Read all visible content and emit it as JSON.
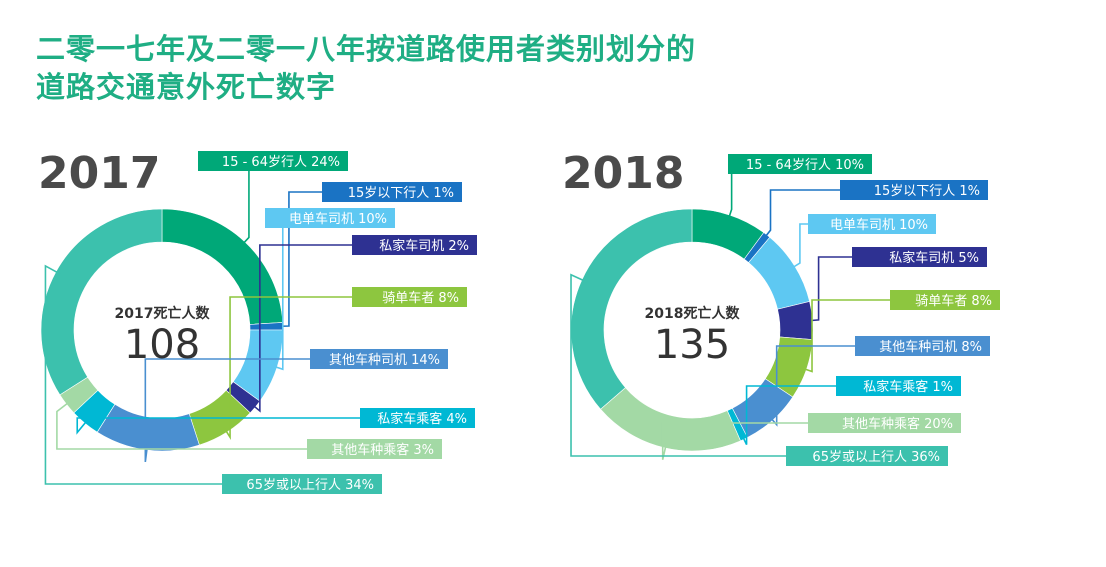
{
  "title": {
    "line1": "二零一七年及二零一八年按道路使用者类别划分的",
    "line2": "道路交通意外死亡数字"
  },
  "chart_data": [
    {
      "type": "pie",
      "year": "2017",
      "center_label": "2017死亡人数",
      "center_value": "108",
      "slices": [
        {
          "label": "15 - 64岁行人 24%",
          "value": 24,
          "color": "#00a878",
          "text_color": "#ffffff"
        },
        {
          "label": "15岁以下行人 1%",
          "value": 1,
          "color": "#1a73c4",
          "text_color": "#ffffff"
        },
        {
          "label": "电单车司机 10%",
          "value": 10,
          "color": "#5ec8f2",
          "text_color": "#ffffff"
        },
        {
          "label": "私家车司机 2%",
          "value": 2,
          "color": "#2e3192",
          "text_color": "#ffffff"
        },
        {
          "label": "骑单车者 8%",
          "value": 8,
          "color": "#8dc63f",
          "text_color": "#ffffff"
        },
        {
          "label": "其他车种司机 14%",
          "value": 14,
          "color": "#4a8fd0",
          "text_color": "#ffffff"
        },
        {
          "label": "私家车乘客 4%",
          "value": 4,
          "color": "#00b8d4",
          "text_color": "#ffffff"
        },
        {
          "label": "其他车种乘客 3%",
          "value": 3,
          "color": "#a3d9a5",
          "text_color": "#ffffff"
        },
        {
          "label": "65岁或以上行人 34%",
          "value": 34,
          "color": "#3cc1ad",
          "text_color": "#ffffff"
        }
      ]
    },
    {
      "type": "pie",
      "year": "2018",
      "center_label": "2018死亡人数",
      "center_value": "135",
      "slices": [
        {
          "label": "15 - 64岁行人 10%",
          "value": 10,
          "color": "#00a878",
          "text_color": "#ffffff"
        },
        {
          "label": "15岁以下行人 1%",
          "value": 1,
          "color": "#1a73c4",
          "text_color": "#ffffff"
        },
        {
          "label": "电单车司机 10%",
          "value": 10,
          "color": "#5ec8f2",
          "text_color": "#ffffff"
        },
        {
          "label": "私家车司机 5%",
          "value": 5,
          "color": "#2e3192",
          "text_color": "#ffffff"
        },
        {
          "label": "骑单车者 8%",
          "value": 8,
          "color": "#8dc63f",
          "text_color": "#ffffff"
        },
        {
          "label": "其他车种司机 8%",
          "value": 8,
          "color": "#4a8fd0",
          "text_color": "#ffffff"
        },
        {
          "label": "私家车乘客 1%",
          "value": 1,
          "color": "#00b8d4",
          "text_color": "#ffffff"
        },
        {
          "label": "其他车种乘客 20%",
          "value": 20,
          "color": "#a3d9a5",
          "text_color": "#ffffff"
        },
        {
          "label": "65岁或以上行人 36%",
          "value": 36,
          "color": "#3cc1ad",
          "text_color": "#ffffff"
        }
      ]
    }
  ]
}
